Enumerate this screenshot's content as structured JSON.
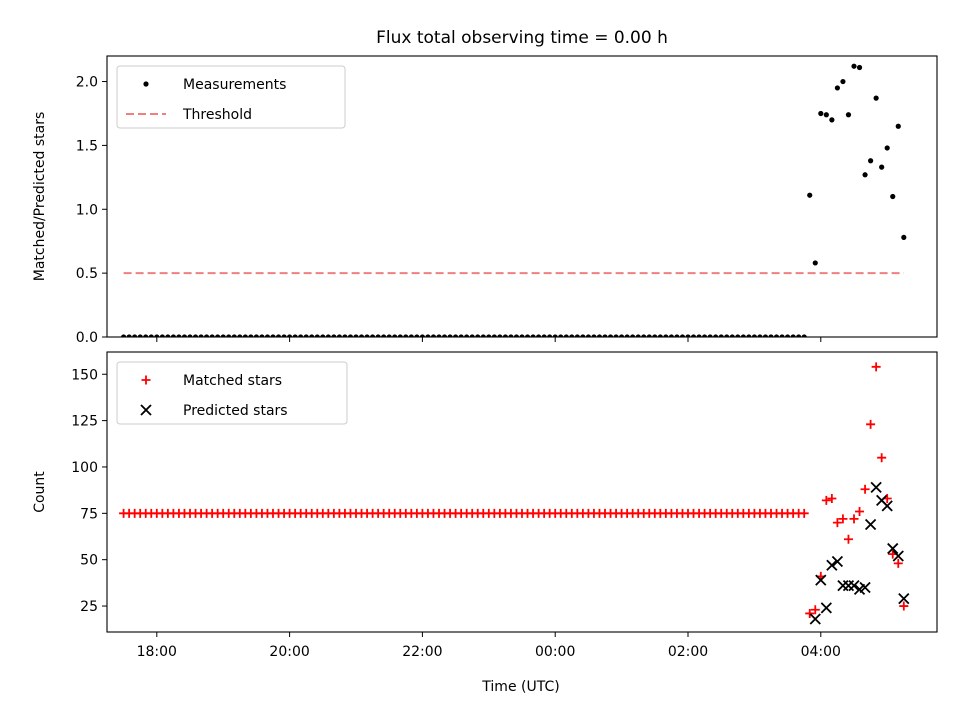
{
  "figure": {
    "title": "Flux total observing time = 0.00 h",
    "xlabel": "Time (UTC)"
  },
  "chart_data": [
    {
      "type": "scatter",
      "ylabel": "Matched/Predicted stars",
      "xlim": [
        "17:15",
        "05:45"
      ],
      "ylim": [
        0,
        2.2
      ],
      "yticks": [
        0.0,
        0.5,
        1.0,
        1.5,
        2.0
      ],
      "ytick_labels": [
        "0.0",
        "0.5",
        "1.0",
        "1.5",
        "2.0"
      ],
      "xticks": [
        "18:00",
        "20:00",
        "22:00",
        "00:00",
        "02:00",
        "04:00"
      ],
      "show_xtick_labels": false,
      "grid": false,
      "legend": "top-left",
      "series": [
        {
          "name": "Measurements",
          "kind": "dots",
          "color": "#000000",
          "x": [
            "17:30",
            "17:35",
            "17:40",
            "17:45",
            "17:50",
            "17:55",
            "18:00",
            "18:05",
            "18:10",
            "18:15",
            "18:20",
            "18:25",
            "18:30",
            "18:35",
            "18:40",
            "18:45",
            "18:50",
            "18:55",
            "19:00",
            "19:05",
            "19:10",
            "19:15",
            "19:20",
            "19:25",
            "19:30",
            "19:35",
            "19:40",
            "19:45",
            "19:50",
            "19:55",
            "20:00",
            "20:05",
            "20:10",
            "20:15",
            "20:20",
            "20:25",
            "20:30",
            "20:35",
            "20:40",
            "20:45",
            "20:50",
            "20:55",
            "21:00",
            "21:05",
            "21:10",
            "21:15",
            "21:20",
            "21:25",
            "21:30",
            "21:35",
            "21:40",
            "21:45",
            "21:50",
            "21:55",
            "22:00",
            "22:05",
            "22:10",
            "22:15",
            "22:20",
            "22:25",
            "22:30",
            "22:35",
            "22:40",
            "22:45",
            "22:50",
            "22:55",
            "23:00",
            "23:05",
            "23:10",
            "23:15",
            "23:20",
            "23:25",
            "23:30",
            "23:35",
            "23:40",
            "23:45",
            "23:50",
            "23:55",
            "00:00",
            "00:05",
            "00:10",
            "00:15",
            "00:20",
            "00:25",
            "00:30",
            "00:35",
            "00:40",
            "00:45",
            "00:50",
            "00:55",
            "01:00",
            "01:05",
            "01:10",
            "01:15",
            "01:20",
            "01:25",
            "01:30",
            "01:35",
            "01:40",
            "01:45",
            "01:50",
            "01:55",
            "02:00",
            "02:05",
            "02:10",
            "02:15",
            "02:20",
            "02:25",
            "02:30",
            "02:35",
            "02:40",
            "02:45",
            "02:50",
            "02:55",
            "03:00",
            "03:05",
            "03:10",
            "03:15",
            "03:20",
            "03:25",
            "03:30",
            "03:35",
            "03:40",
            "03:45",
            "03:50",
            "03:55",
            "04:00",
            "04:05",
            "04:10",
            "04:15",
            "04:20",
            "04:25",
            "04:30",
            "04:35",
            "04:40",
            "04:45",
            "04:50",
            "04:55",
            "05:00",
            "05:05",
            "05:10",
            "05:15"
          ],
          "y": [
            0,
            0,
            0,
            0,
            0,
            0,
            0,
            0,
            0,
            0,
            0,
            0,
            0,
            0,
            0,
            0,
            0,
            0,
            0,
            0,
            0,
            0,
            0,
            0,
            0,
            0,
            0,
            0,
            0,
            0,
            0,
            0,
            0,
            0,
            0,
            0,
            0,
            0,
            0,
            0,
            0,
            0,
            0,
            0,
            0,
            0,
            0,
            0,
            0,
            0,
            0,
            0,
            0,
            0,
            0,
            0,
            0,
            0,
            0,
            0,
            0,
            0,
            0,
            0,
            0,
            0,
            0,
            0,
            0,
            0,
            0,
            0,
            0,
            0,
            0,
            0,
            0,
            0,
            0,
            0,
            0,
            0,
            0,
            0,
            0,
            0,
            0,
            0,
            0,
            0,
            0,
            0,
            0,
            0,
            0,
            0,
            0,
            0,
            0,
            0,
            0,
            0,
            0,
            0,
            0,
            0,
            0,
            0,
            0,
            0,
            0,
            0,
            0,
            0,
            0,
            0,
            0,
            0,
            0,
            0,
            0,
            0,
            0,
            0,
            1.11,
            0.58,
            1.75,
            1.74,
            1.7,
            1.95,
            2.0,
            1.74,
            2.12,
            2.11,
            1.27,
            1.38,
            1.87,
            1.33,
            1.48,
            1.1,
            1.65,
            0.78
          ]
        },
        {
          "name": "Threshold",
          "kind": "dashed-line",
          "color": "#f08080",
          "x": [
            "17:30",
            "05:15"
          ],
          "y": [
            0.5,
            0.5
          ]
        }
      ]
    },
    {
      "type": "scatter",
      "ylabel": "Count",
      "xlim": [
        "17:15",
        "05:45"
      ],
      "ylim": [
        11,
        162
      ],
      "yticks": [
        25,
        50,
        75,
        100,
        125,
        150
      ],
      "ytick_labels": [
        "25",
        "50",
        "75",
        "100",
        "125",
        "150"
      ],
      "xticks": [
        "18:00",
        "20:00",
        "22:00",
        "00:00",
        "02:00",
        "04:00"
      ],
      "xtick_labels": [
        "18:00",
        "20:00",
        "22:00",
        "00:00",
        "02:00",
        "04:00"
      ],
      "grid": false,
      "legend": "top-left",
      "series": [
        {
          "name": "Matched stars",
          "kind": "plus",
          "color": "#ff0000",
          "x": [
            "17:30",
            "17:35",
            "17:40",
            "17:45",
            "17:50",
            "17:55",
            "18:00",
            "18:05",
            "18:10",
            "18:15",
            "18:20",
            "18:25",
            "18:30",
            "18:35",
            "18:40",
            "18:45",
            "18:50",
            "18:55",
            "19:00",
            "19:05",
            "19:10",
            "19:15",
            "19:20",
            "19:25",
            "19:30",
            "19:35",
            "19:40",
            "19:45",
            "19:50",
            "19:55",
            "20:00",
            "20:05",
            "20:10",
            "20:15",
            "20:20",
            "20:25",
            "20:30",
            "20:35",
            "20:40",
            "20:45",
            "20:50",
            "20:55",
            "21:00",
            "21:05",
            "21:10",
            "21:15",
            "21:20",
            "21:25",
            "21:30",
            "21:35",
            "21:40",
            "21:45",
            "21:50",
            "21:55",
            "22:00",
            "22:05",
            "22:10",
            "22:15",
            "22:20",
            "22:25",
            "22:30",
            "22:35",
            "22:40",
            "22:45",
            "22:50",
            "22:55",
            "23:00",
            "23:05",
            "23:10",
            "23:15",
            "23:20",
            "23:25",
            "23:30",
            "23:35",
            "23:40",
            "23:45",
            "23:50",
            "23:55",
            "00:00",
            "00:05",
            "00:10",
            "00:15",
            "00:20",
            "00:25",
            "00:30",
            "00:35",
            "00:40",
            "00:45",
            "00:50",
            "00:55",
            "01:00",
            "01:05",
            "01:10",
            "01:15",
            "01:20",
            "01:25",
            "01:30",
            "01:35",
            "01:40",
            "01:45",
            "01:50",
            "01:55",
            "02:00",
            "02:05",
            "02:10",
            "02:15",
            "02:20",
            "02:25",
            "02:30",
            "02:35",
            "02:40",
            "02:45",
            "02:50",
            "02:55",
            "03:00",
            "03:05",
            "03:10",
            "03:15",
            "03:20",
            "03:25",
            "03:30",
            "03:35",
            "03:40",
            "03:45",
            "03:50",
            "03:55",
            "04:00",
            "04:05",
            "04:10",
            "04:15",
            "04:20",
            "04:25",
            "04:30",
            "04:35",
            "04:40",
            "04:45",
            "04:50",
            "04:55",
            "05:00",
            "05:05",
            "05:10",
            "05:15"
          ],
          "y": [
            75,
            75,
            75,
            75,
            75,
            75,
            75,
            75,
            75,
            75,
            75,
            75,
            75,
            75,
            75,
            75,
            75,
            75,
            75,
            75,
            75,
            75,
            75,
            75,
            75,
            75,
            75,
            75,
            75,
            75,
            75,
            75,
            75,
            75,
            75,
            75,
            75,
            75,
            75,
            75,
            75,
            75,
            75,
            75,
            75,
            75,
            75,
            75,
            75,
            75,
            75,
            75,
            75,
            75,
            75,
            75,
            75,
            75,
            75,
            75,
            75,
            75,
            75,
            75,
            75,
            75,
            75,
            75,
            75,
            75,
            75,
            75,
            75,
            75,
            75,
            75,
            75,
            75,
            75,
            75,
            75,
            75,
            75,
            75,
            75,
            75,
            75,
            75,
            75,
            75,
            75,
            75,
            75,
            75,
            75,
            75,
            75,
            75,
            75,
            75,
            75,
            75,
            75,
            75,
            75,
            75,
            75,
            75,
            75,
            75,
            75,
            75,
            75,
            75,
            75,
            75,
            75,
            75,
            75,
            75,
            75,
            75,
            75,
            75,
            21,
            23,
            41,
            82,
            83,
            70,
            72,
            61,
            72,
            76,
            88,
            123,
            154,
            105,
            83,
            53,
            48,
            25
          ]
        },
        {
          "name": "Predicted stars",
          "kind": "x",
          "color": "#000000",
          "x": [
            "03:55",
            "04:00",
            "04:05",
            "04:10",
            "04:15",
            "04:20",
            "04:25",
            "04:30",
            "04:35",
            "04:40",
            "04:45",
            "04:50",
            "04:55",
            "05:00",
            "05:05",
            "05:10",
            "05:15"
          ],
          "y": [
            18,
            39,
            24,
            47,
            49,
            36,
            36,
            36,
            34,
            35,
            69,
            89,
            82,
            79,
            56,
            52,
            29
          ]
        }
      ]
    }
  ]
}
